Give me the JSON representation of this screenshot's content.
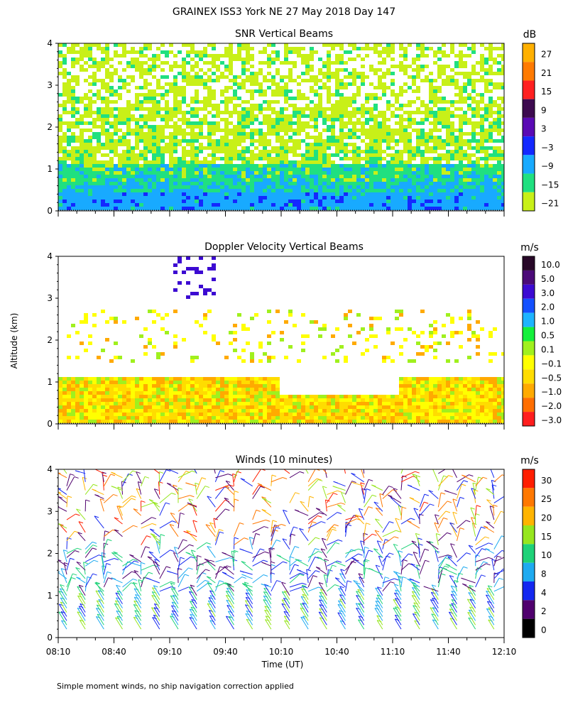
{
  "figure_title": "GRAINEX ISS3 York NE  27 May 2018 Day 147",
  "y_axis_label": "Altitude (km)",
  "x_axis_label": "Time (UT)",
  "footnote": "Simple moment winds, no ship navigation correction applied",
  "chart_data": [
    {
      "type": "heatmap",
      "title": "SNR Vertical Beams",
      "xlabel": "",
      "ylabel": "Altitude (km)",
      "x_ticks": [],
      "y_ticks": [
        "0",
        "1",
        "2",
        "3",
        "4"
      ],
      "ylim": [
        0,
        4
      ],
      "xlim": [
        "08:10",
        "12:10"
      ],
      "colorbar": {
        "unit": "dB",
        "labels": [
          "27",
          "21",
          "15",
          "9",
          "3",
          "−3",
          "−9",
          "−15",
          "−21"
        ],
        "colors": [
          "#ffb000",
          "#ff7a00",
          "#ff2020",
          "#3d0a4f",
          "#5a0ab4",
          "#1428ff",
          "#18aaff",
          "#20e080",
          "#c8f018"
        ]
      },
      "layers": [
        {
          "altitude_km": [
            0.0,
            0.45
          ],
          "snr_db": -9
        },
        {
          "altitude_km": [
            0.45,
            1.15
          ],
          "snr_db": -15
        },
        {
          "altitude_km": [
            1.15,
            2.5
          ],
          "snr_db": -21
        },
        {
          "altitude_km": [
            2.5,
            4.0
          ],
          "snr_db": -21
        }
      ]
    },
    {
      "type": "heatmap",
      "title": "Doppler Velocity Vertical Beams",
      "xlabel": "",
      "ylabel": "Altitude (km)",
      "x_ticks": [],
      "y_ticks": [
        "0",
        "1",
        "2",
        "3",
        "4"
      ],
      "ylim": [
        0,
        4
      ],
      "xlim": [
        "08:10",
        "12:10"
      ],
      "colorbar": {
        "unit": "m/s",
        "labels": [
          "10.0",
          "5.0",
          "3.0",
          "2.0",
          "1.0",
          "0.5",
          "0.1",
          "−0.1",
          "−0.5",
          "−1.0",
          "−2.0",
          "−3.0"
        ],
        "colors": [
          "#280828",
          "#4b0a78",
          "#3c0ad2",
          "#1450ff",
          "#1eb4ff",
          "#14f03c",
          "#a0f01e",
          "#ffff00",
          "#ffdc00",
          "#ffaa00",
          "#ff6e00",
          "#ff1e1e"
        ]
      },
      "layers": [
        {
          "altitude_km": [
            0.05,
            1.15
          ],
          "velocity_ms": -0.5
        },
        {
          "altitude_km": [
            1.5,
            2.8
          ],
          "velocity_ms": -0.1
        },
        {
          "altitude_km": [
            3.0,
            4.0
          ],
          "velocity_ms": 3.0
        }
      ]
    },
    {
      "type": "scatter",
      "title": "Winds (10 minutes)",
      "xlabel": "Time (UT)",
      "ylabel": "Altitude (km)",
      "x_ticks": [
        "08:10",
        "08:40",
        "09:10",
        "09:40",
        "10:10",
        "10:40",
        "11:10",
        "11:40",
        "12:10"
      ],
      "y_ticks": [
        "0",
        "1",
        "2",
        "3",
        "4"
      ],
      "ylim": [
        0,
        4
      ],
      "xlim": [
        "08:10",
        "12:10"
      ],
      "colorbar": {
        "unit": "m/s",
        "labels": [
          "30",
          "25",
          "20",
          "15",
          "10",
          "8",
          "4",
          "2",
          "0"
        ],
        "colors": [
          "#ff1e00",
          "#ff7800",
          "#ffb400",
          "#96e61e",
          "#1ed278",
          "#1eaaf0",
          "#1428f0",
          "#50006e",
          "#000000"
        ]
      },
      "marks": "wind barbs every 10 minutes, 0.2–4 km"
    }
  ]
}
